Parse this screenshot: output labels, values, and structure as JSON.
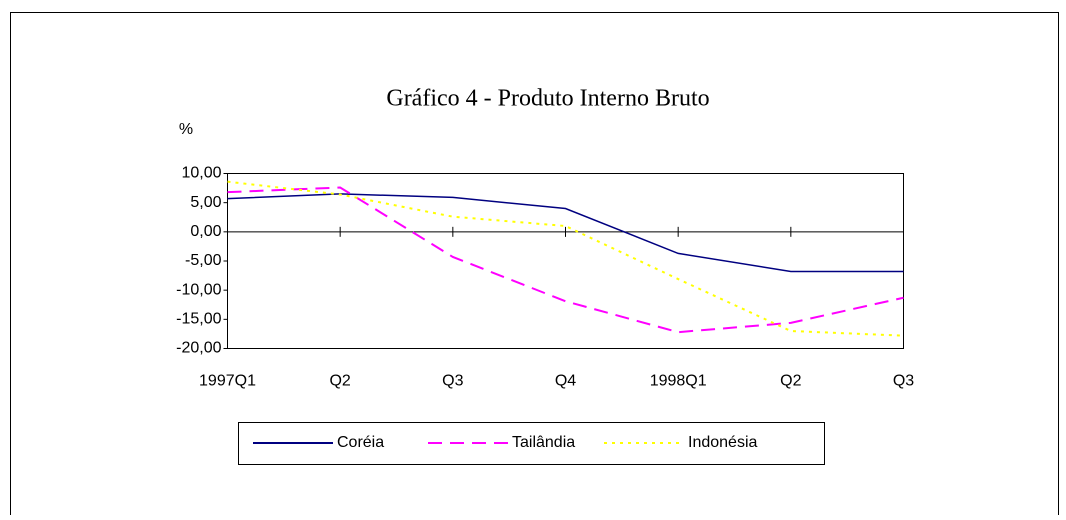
{
  "chart_data": {
    "type": "line",
    "title": "Gráfico 4 - Produto Interno Bruto",
    "y_label": "%",
    "categories": [
      "1997Q1",
      "Q2",
      "Q3",
      "Q4",
      "1998Q1",
      "Q2",
      "Q3"
    ],
    "series": [
      {
        "name": "Coréia",
        "color": "#000080",
        "dash": "solid",
        "values": [
          5.7,
          6.5,
          5.9,
          4.0,
          -3.7,
          -6.8,
          -6.8
        ]
      },
      {
        "name": "Tailândia",
        "color": "#ff00ff",
        "dash": "dashed",
        "values": [
          6.8,
          7.6,
          -4.3,
          -11.9,
          -17.2,
          -15.6,
          -11.3
        ]
      },
      {
        "name": "Indonésia",
        "color": "#ffff00",
        "dash": "dotted",
        "values": [
          8.6,
          6.4,
          2.6,
          1.0,
          -8.1,
          -17.0,
          -17.8
        ]
      }
    ],
    "ylim": [
      -20,
      10
    ],
    "yticks": [
      {
        "value": -20,
        "label": "-20,00"
      },
      {
        "value": -15,
        "label": "-15,00"
      },
      {
        "value": -10,
        "label": "-10,00"
      },
      {
        "value": -5,
        "label": "-5,00"
      },
      {
        "value": 0,
        "label": "0,00"
      },
      {
        "value": 5,
        "label": "5,00"
      },
      {
        "value": 10,
        "label": "10,00"
      }
    ],
    "legend": "bottom"
  }
}
